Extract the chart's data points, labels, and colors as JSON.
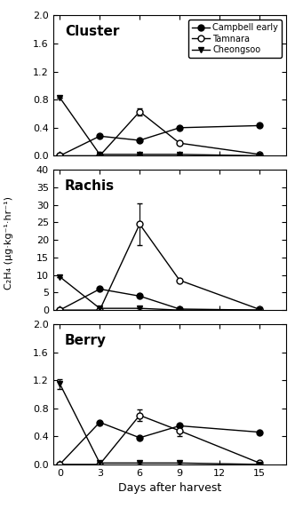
{
  "days": [
    0,
    3,
    6,
    9,
    15
  ],
  "cluster": {
    "campbell": {
      "y": [
        0.0,
        0.28,
        0.22,
        0.4,
        0.43
      ],
      "yerr": [
        0,
        0,
        0,
        0,
        0
      ]
    },
    "tamnara": {
      "y": [
        0.0,
        0.0,
        0.63,
        0.18,
        0.02
      ],
      "yerr": [
        0,
        0,
        0.05,
        0,
        0
      ]
    },
    "cheongsoo": {
      "y": [
        0.83,
        0.02,
        0.02,
        0.02,
        0.0
      ],
      "yerr": [
        0,
        0,
        0,
        0,
        0
      ]
    }
  },
  "rachis": {
    "campbell": {
      "y": [
        0.0,
        6.0,
        4.0,
        0.3,
        0.0
      ],
      "yerr": [
        0,
        0,
        0,
        0,
        0
      ]
    },
    "tamnara": {
      "y": [
        0.0,
        0.0,
        24.5,
        8.5,
        0.2
      ],
      "yerr": [
        0,
        0,
        6.0,
        0,
        0
      ]
    },
    "cheongsoo": {
      "y": [
        9.5,
        0.5,
        0.5,
        0.0,
        0.0
      ],
      "yerr": [
        0,
        0,
        0,
        0,
        0
      ]
    }
  },
  "berry": {
    "campbell": {
      "y": [
        0.0,
        0.6,
        0.38,
        0.55,
        0.46
      ],
      "yerr": [
        0,
        0,
        0,
        0,
        0
      ]
    },
    "tamnara": {
      "y": [
        0.0,
        0.0,
        0.7,
        0.48,
        0.02
      ],
      "yerr": [
        0,
        0,
        0.08,
        0.07,
        0
      ]
    },
    "cheongsoo": {
      "y": [
        1.15,
        0.02,
        0.02,
        0.02,
        0.0
      ],
      "yerr": [
        0.07,
        0,
        0,
        0,
        0
      ]
    }
  },
  "cluster_ylim": [
    0,
    2.0
  ],
  "cluster_yticks": [
    0.0,
    0.4,
    0.8,
    1.2,
    1.6,
    2.0
  ],
  "rachis_ylim": [
    0,
    40
  ],
  "rachis_yticks": [
    0,
    5,
    10,
    15,
    20,
    25,
    30,
    35,
    40
  ],
  "berry_ylim": [
    0,
    2.0
  ],
  "berry_yticks": [
    0.0,
    0.4,
    0.8,
    1.2,
    1.6,
    2.0
  ],
  "xlim": [
    -0.5,
    17
  ],
  "xticks": [
    0,
    3,
    6,
    9,
    12,
    15
  ],
  "ylabel": "C₂H₄ (μg·kg⁻¹·hr⁻¹)",
  "xlabel": "Days after harvest",
  "legend_labels": [
    "Campbell early",
    "Tamnara",
    "Cheongsoo"
  ],
  "panel_labels": [
    "Cluster",
    "Rachis",
    "Berry"
  ],
  "bg_color": "#ffffff",
  "line_color": "#000000"
}
